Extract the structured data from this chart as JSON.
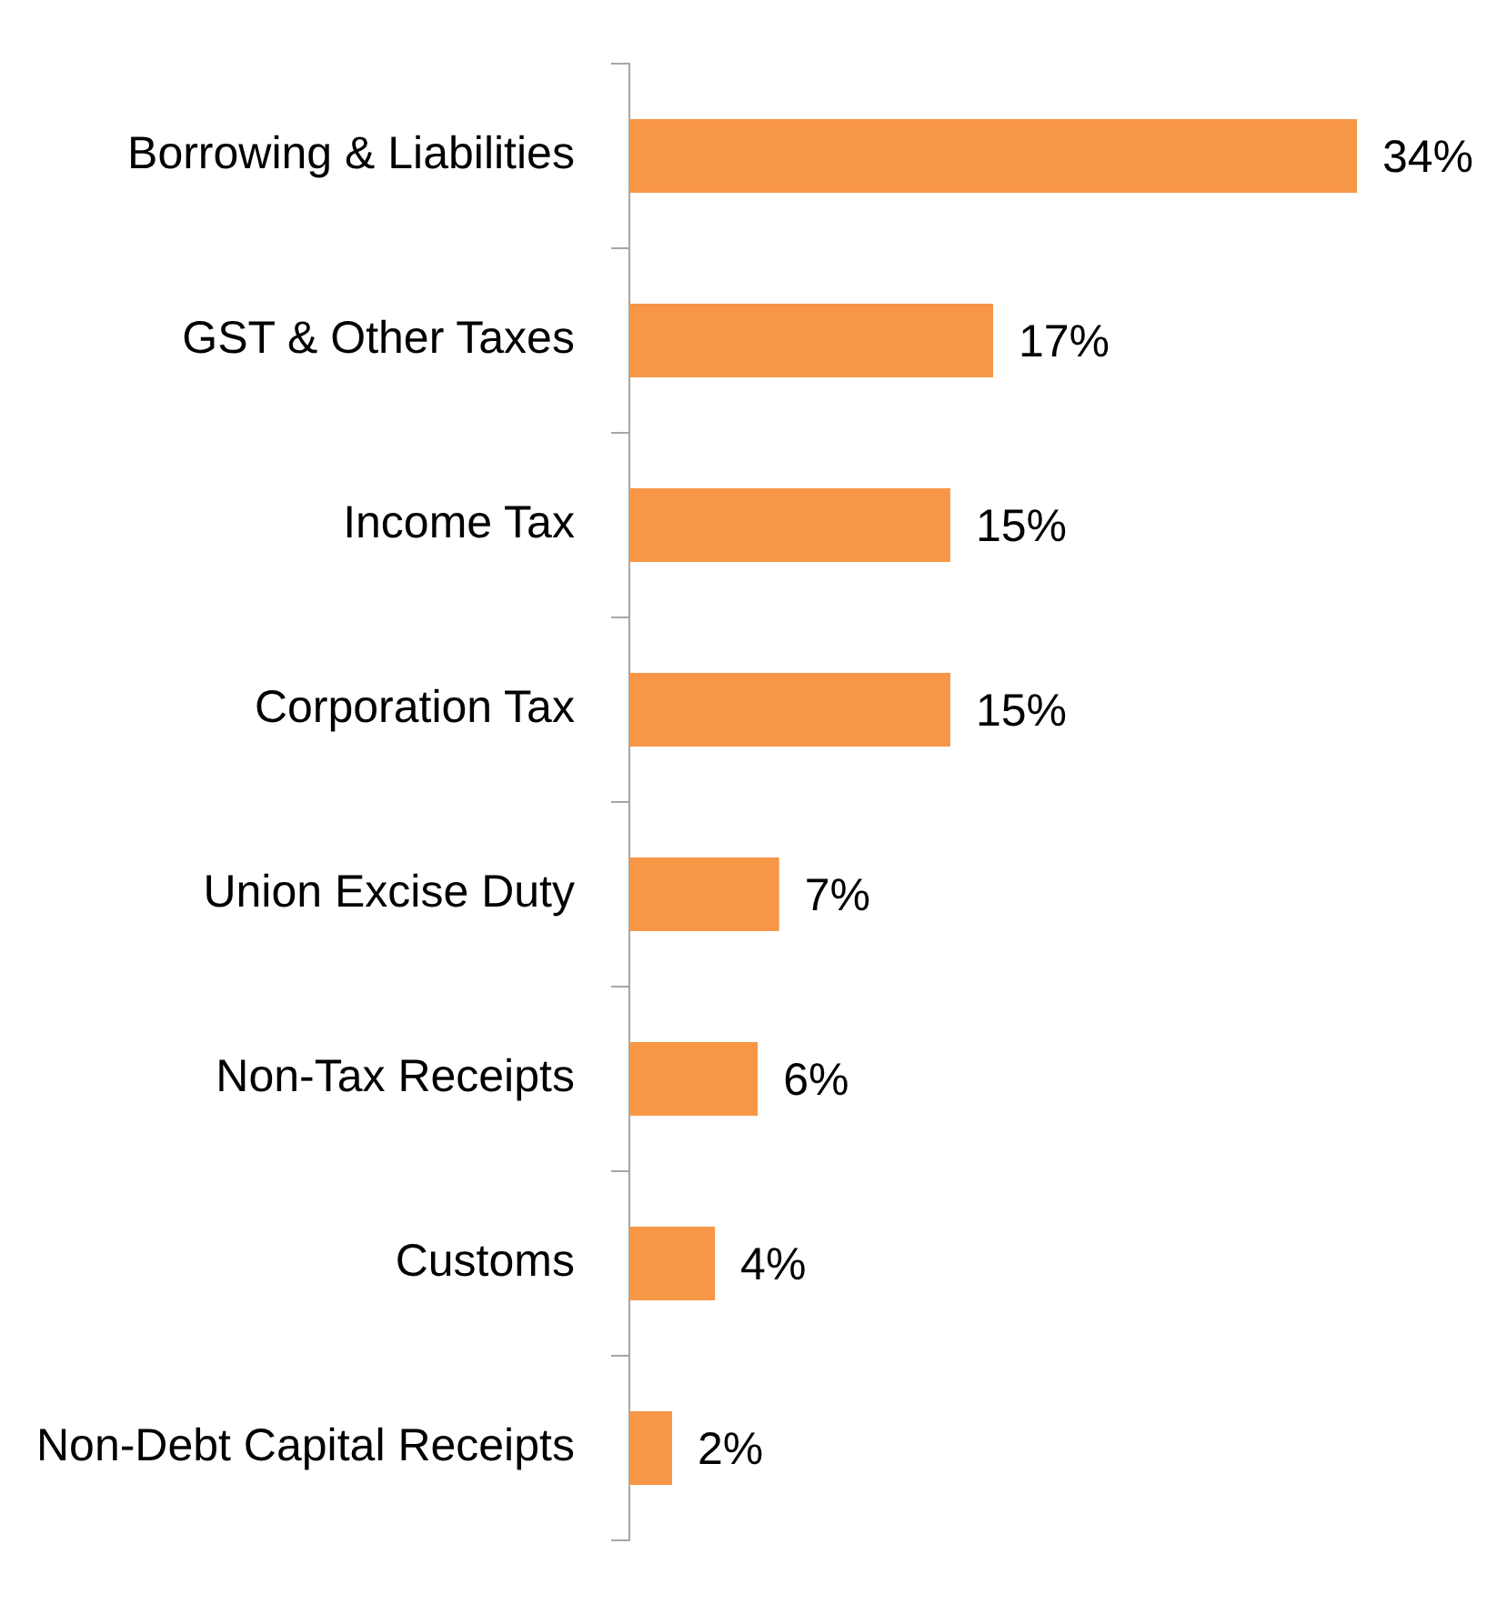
{
  "chart_data": {
    "type": "bar",
    "orientation": "horizontal",
    "categories": [
      "Borrowing & Liabilities",
      "GST & Other Taxes",
      "Income Tax",
      "Corporation Tax",
      "Union Excise Duty",
      "Non-Tax Receipts",
      "Customs",
      "Non-Debt Capital Receipts"
    ],
    "values": [
      34,
      17,
      15,
      15,
      7,
      6,
      4,
      2
    ],
    "color": "#f79646",
    "value_labels": [
      "34%",
      "17%",
      "15%",
      "15%",
      "7%",
      "6%",
      "4%",
      "2%"
    ],
    "legend": false
  }
}
